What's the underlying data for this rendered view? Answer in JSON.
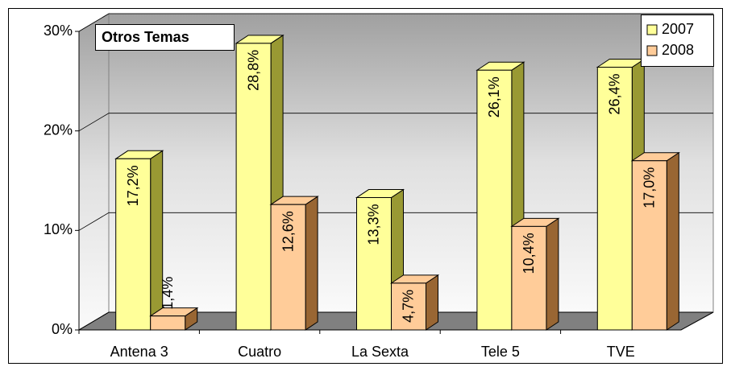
{
  "chart_data": {
    "type": "bar3d",
    "title": "Otros Temas",
    "categories": [
      "Antena 3",
      "Cuatro",
      "La Sexta",
      "Tele 5",
      "TVE"
    ],
    "series": [
      {
        "name": "2007",
        "color": "#ffff99",
        "side": "#999933",
        "values": [
          17.2,
          28.8,
          13.3,
          26.1,
          26.4
        ],
        "value_labels": [
          "17,2%",
          "28,8%",
          "13,3%",
          "26,1%",
          "26,4%"
        ]
      },
      {
        "name": "2008",
        "color": "#ffcc99",
        "side": "#996633",
        "values": [
          1.4,
          12.6,
          4.7,
          10.4,
          17.0
        ],
        "value_labels": [
          "1,4%",
          "12,6%",
          "4,7%",
          "10,4%",
          "17,0%"
        ]
      }
    ],
    "ylim": [
      0,
      30
    ],
    "yticks": [
      {
        "value": 0,
        "label": "0%"
      },
      {
        "value": 10,
        "label": "10%"
      },
      {
        "value": 20,
        "label": "20%"
      },
      {
        "value": 30,
        "label": "30%"
      }
    ],
    "grid": true
  }
}
